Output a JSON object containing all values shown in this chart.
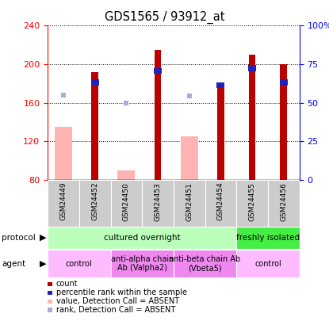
{
  "title": "GDS1565 / 93912_at",
  "samples": [
    "GSM24449",
    "GSM24452",
    "GSM24450",
    "GSM24453",
    "GSM24451",
    "GSM24454",
    "GSM24455",
    "GSM24456"
  ],
  "count_values": [
    null,
    192,
    null,
    215,
    null,
    178,
    210,
    200
  ],
  "rank_values": [
    null,
    178,
    null,
    190,
    null,
    175,
    193,
    178
  ],
  "absent_value": [
    135,
    null,
    90,
    null,
    125,
    null,
    null,
    null
  ],
  "absent_rank": [
    168,
    null,
    160,
    null,
    167,
    null,
    null,
    null
  ],
  "red_bar_color": "#bb0000",
  "pink_bar_color": "#ffb3b3",
  "blue_bar_color": "#2222bb",
  "light_blue_color": "#aaaadd",
  "ylim_left": [
    80,
    240
  ],
  "ylim_right": [
    0,
    100
  ],
  "yticks_left": [
    80,
    120,
    160,
    200,
    240
  ],
  "yticks_right": [
    0,
    25,
    50,
    75,
    100
  ],
  "yticklabels_right": [
    "0",
    "25",
    "50",
    "75",
    "100%"
  ],
  "protocol_labels": [
    {
      "text": "cultured overnight",
      "start": 0,
      "end": 6,
      "color": "#bbffbb"
    },
    {
      "text": "freshly isolated",
      "start": 6,
      "end": 8,
      "color": "#44ee44"
    }
  ],
  "agent_labels": [
    {
      "text": "control",
      "start": 0,
      "end": 2,
      "color": "#ffbbff"
    },
    {
      "text": "anti-alpha chain\nAb (Valpha2)",
      "start": 2,
      "end": 4,
      "color": "#ee88ee"
    },
    {
      "text": "anti-beta chain Ab\n(Vbeta5)",
      "start": 4,
      "end": 6,
      "color": "#ee88ee"
    },
    {
      "text": "control",
      "start": 6,
      "end": 8,
      "color": "#ffbbff"
    }
  ],
  "legend_items": [
    {
      "label": "count",
      "color": "#bb0000"
    },
    {
      "label": "percentile rank within the sample",
      "color": "#2222bb"
    },
    {
      "label": "value, Detection Call = ABSENT",
      "color": "#ffb3b3"
    },
    {
      "label": "rank, Detection Call = ABSENT",
      "color": "#aaaadd"
    }
  ]
}
